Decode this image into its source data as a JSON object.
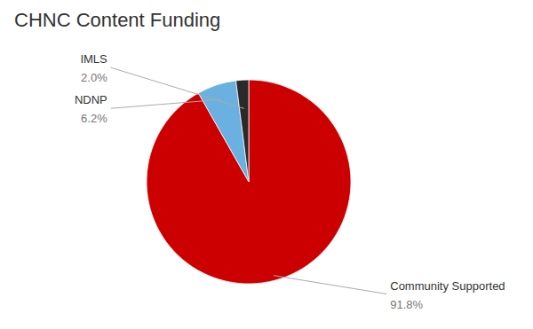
{
  "chart_data": {
    "type": "pie",
    "title": "CHNC Content Funding",
    "categories": [
      "Community Supported",
      "NDNP",
      "IMLS"
    ],
    "values": [
      91.8,
      6.2,
      2.0
    ],
    "value_labels": [
      "91.8%",
      "6.2%",
      "2.0%"
    ],
    "colors": [
      "#cc0000",
      "#6ab0e0",
      "#2a2a2a"
    ],
    "data_labels": true
  }
}
